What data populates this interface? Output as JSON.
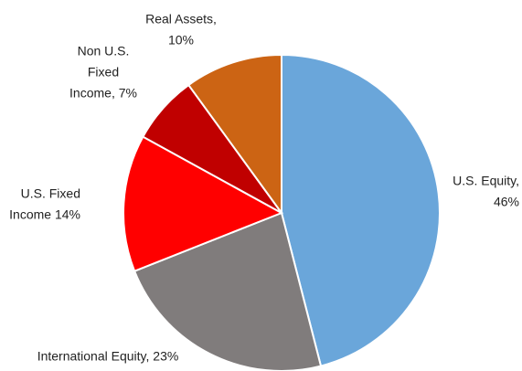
{
  "chart_data": {
    "type": "pie",
    "labels": [
      [
        "U.S. Equity,",
        "46%"
      ],
      [
        "International Equity, 23%"
      ],
      [
        "U.S. Fixed",
        "Income 14%"
      ],
      [
        "Non U.S.",
        "Fixed",
        "Income, 7%"
      ],
      [
        "Real Assets,",
        "10%"
      ]
    ],
    "values": [
      46,
      23,
      14,
      7,
      10
    ],
    "colors": [
      "#6aa6da",
      "#807c7c",
      "#ff0000",
      "#c00000",
      "#cc6414"
    ]
  }
}
